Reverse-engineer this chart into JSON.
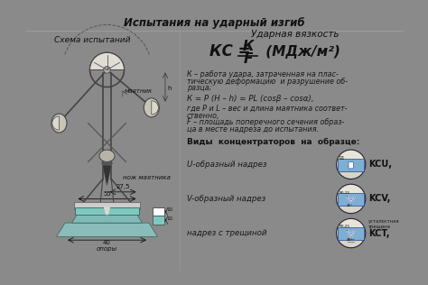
{
  "title": "Испытания на ударный изгиб",
  "bg_outer": "#8a8a8a",
  "bg_paper": "#dcd8cc",
  "bg_paper_inner": "#e8e4d8",
  "text_color": "#1a1818",
  "text_dark": "#111111",
  "left_label": "Схема испытаний",
  "right_title": "Ударная вязкость",
  "conc_title": "Виды  концентраторов  на  образце:",
  "conc1": "U-образный надрез",
  "conc1_label": "KCU,",
  "conc2": "V-образный надрез",
  "conc2_label": "KCV,",
  "conc3": "надрез с трещиной",
  "conc3_label": "KCT,",
  "pendulum_label": "маятник",
  "knife_label": "нож маятника",
  "support_label": "опоры",
  "dim1": "55",
  "dim2": "27,5",
  "dim3": "40",
  "dim4": "10",
  "dim5": "10",
  "icon_bg": "#7eaed4",
  "icon_edge": "#2244aa",
  "specimen_color": "#7ec8c0",
  "anvil_color": "#80bab8"
}
